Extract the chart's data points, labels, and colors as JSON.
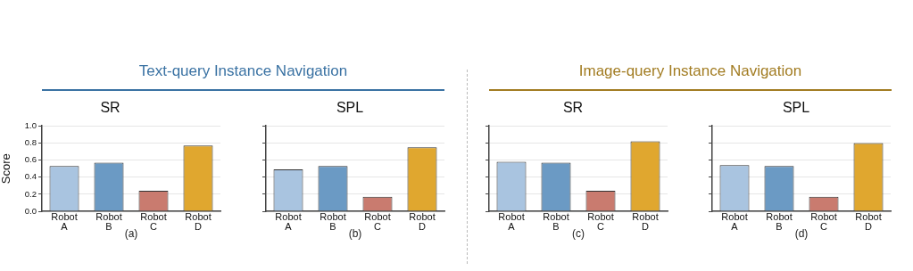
{
  "chart_data": [
    {
      "type": "bar",
      "title": "SR",
      "ylabel": "Score",
      "categories": [
        "Robot A",
        "Robot B",
        "Robot C",
        "Robot D"
      ],
      "values": [
        0.53,
        0.57,
        0.24,
        0.77
      ],
      "colors": [
        "#a9c4e0",
        "#6b9ac4",
        "#c97b6f",
        "#e0a72f"
      ],
      "ylim": [
        0,
        1
      ],
      "yticks": [
        {
          "value": 0,
          "label": "0.0"
        },
        0.2,
        0.4,
        0.6,
        0.8,
        {
          "value": 1,
          "label": "1.0"
        }
      ],
      "grid": "y",
      "annotations": [
        "Text-query Instance Navigation",
        "(a)"
      ]
    },
    {
      "type": "bar",
      "title": "SPL",
      "categories": [
        "Robot A",
        "Robot B",
        "Robot C",
        "Robot D"
      ],
      "values": [
        0.49,
        0.53,
        0.17,
        0.75
      ],
      "colors": [
        "#a9c4e0",
        "#6b9ac4",
        "#c97b6f",
        "#e0a72f"
      ],
      "ylim": [
        0,
        1
      ],
      "yticks": [
        {
          "value": 0,
          "label": null
        },
        {
          "value": 0.2,
          "label": null
        },
        {
          "value": 0.4,
          "label": null
        },
        {
          "value": 0.6,
          "label": null
        },
        {
          "value": 0.8,
          "label": null
        },
        {
          "value": 1,
          "label": null
        }
      ],
      "grid": "y",
      "tick_labels": "x",
      "annotations": [
        "(b)"
      ]
    },
    {
      "type": "bar",
      "title": "SR",
      "categories": [
        "Robot A",
        "Robot B",
        "Robot C",
        "Robot D"
      ],
      "values": [
        0.58,
        0.57,
        0.24,
        0.82
      ],
      "colors": [
        "#a9c4e0",
        "#6b9ac4",
        "#c97b6f",
        "#e0a72f"
      ],
      "ylim": [
        0,
        1
      ],
      "yticks": [
        {
          "value": 0,
          "label": null
        },
        {
          "value": 0.2,
          "label": null
        },
        {
          "value": 0.4,
          "label": null
        },
        {
          "value": 0.6,
          "label": null
        },
        {
          "value": 0.8,
          "label": null
        },
        {
          "value": 1,
          "label": null
        }
      ],
      "grid": "y",
      "tick_labels": "x",
      "annotations": [
        "Image-query Instance Navigation",
        "(c)"
      ]
    },
    {
      "type": "bar",
      "title": "SPL",
      "categories": [
        "Robot A",
        "Robot B",
        "Robot C",
        "Robot D"
      ],
      "values": [
        0.54,
        0.53,
        0.17,
        0.8
      ],
      "colors": [
        "#a9c4e0",
        "#6b9ac4",
        "#c97b6f",
        "#e0a72f"
      ],
      "ylim": [
        0,
        1
      ],
      "yticks": [
        {
          "value": 0,
          "label": null
        },
        {
          "value": 0.2,
          "label": null
        },
        {
          "value": 0.4,
          "label": null
        },
        {
          "value": 0.6,
          "label": null
        },
        {
          "value": 0.8,
          "label": null
        },
        {
          "value": 1,
          "label": null
        }
      ],
      "grid": "y",
      "tick_labels": "x",
      "annotations": [
        "(d)"
      ]
    }
  ]
}
